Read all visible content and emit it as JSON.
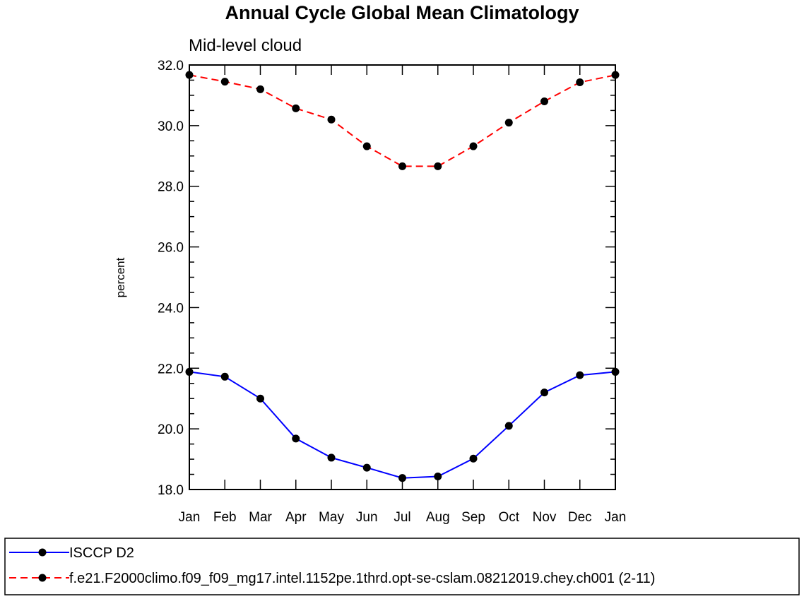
{
  "chart_data": {
    "type": "line",
    "title": "Annual Cycle Global Mean Climatology",
    "subtitle": "Mid-level cloud",
    "xlabel": "",
    "ylabel": "percent",
    "categories": [
      "Jan",
      "Feb",
      "Mar",
      "Apr",
      "May",
      "Jun",
      "Jul",
      "Aug",
      "Sep",
      "Oct",
      "Nov",
      "Dec",
      "Jan"
    ],
    "ylim": [
      18.0,
      32.0
    ],
    "y_ticks": [
      "18.0",
      "20.0",
      "22.0",
      "24.0",
      "26.0",
      "28.0",
      "30.0",
      "32.0"
    ],
    "grid": false,
    "legend_position": "bottom",
    "series": [
      {
        "name": "ISCCP D2",
        "color": "#0000ff",
        "line_style": "solid",
        "marker": "filled-circle",
        "values": [
          21.88,
          21.72,
          21.0,
          19.68,
          19.05,
          18.72,
          18.38,
          18.43,
          19.02,
          20.1,
          21.2,
          21.77,
          21.88
        ]
      },
      {
        "name": "f.e21.F2000climo.f09_f09_mg17.intel.1152pe.1thrd.opt-se-cslam.08212019.chey.ch001 (2-11)",
        "color": "#ff0000",
        "line_style": "dashed",
        "marker": "filled-circle",
        "values": [
          31.67,
          31.45,
          31.2,
          30.57,
          30.2,
          29.32,
          28.66,
          28.66,
          29.32,
          30.1,
          30.8,
          31.43,
          31.67
        ]
      }
    ]
  }
}
